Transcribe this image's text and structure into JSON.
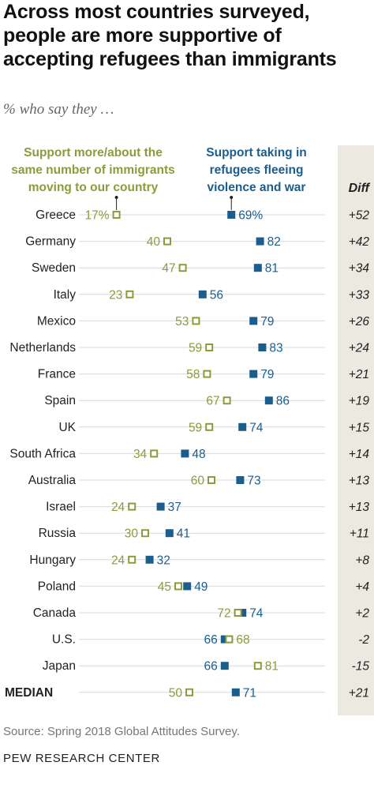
{
  "title": "Across most countries surveyed,\npeople are more supportive of\naccepting refugees than immigrants",
  "subtitle": "% who say they …",
  "source": "Source: Spring 2018 Global Attitudes Survey.",
  "footer": "PEW RESEARCH CENTER",
  "colors": {
    "immigrants": "#8f9a3a",
    "refugees": "#1a5e8e",
    "diff_panel": "#ece9e0",
    "line": "#d9d9d9"
  },
  "chart_data": {
    "type": "dot",
    "diff_header": "Diff",
    "series": [
      {
        "name": "Support more/about the same number of immigrants moving to our country",
        "marker": "hollow-square",
        "color": "#8f9a3a",
        "values": [
          17,
          40,
          47,
          23,
          53,
          59,
          58,
          67,
          59,
          34,
          60,
          24,
          30,
          24,
          45,
          72,
          68,
          81,
          50
        ]
      },
      {
        "name": "Support taking in refugees fleeing violence and war",
        "marker": "filled-square",
        "color": "#1a5e8e",
        "values": [
          69,
          82,
          81,
          56,
          79,
          83,
          79,
          86,
          74,
          48,
          73,
          37,
          41,
          32,
          49,
          74,
          66,
          66,
          71
        ]
      }
    ],
    "legend_left": "Support more/about the same number of immigrants moving to our country",
    "legend_right": "Support taking in refugees fleeing violence and war",
    "categories": [
      "Greece",
      "Germany",
      "Sweden",
      "Italy",
      "Mexico",
      "Netherlands",
      "France",
      "Spain",
      "UK",
      "South Africa",
      "Australia",
      "Israel",
      "Russia",
      "Hungary",
      "Poland",
      "Canada",
      "U.S.",
      "Japan",
      "MEDIAN"
    ],
    "labels_immigrants": [
      "17%",
      "40",
      "47",
      "23",
      "53",
      "59",
      "58",
      "67",
      "59",
      "34",
      "60",
      "24",
      "30",
      "24",
      "45",
      "72",
      "68",
      "81",
      "50"
    ],
    "labels_refugees": [
      "69%",
      "82",
      "81",
      "56",
      "79",
      "83",
      "79",
      "86",
      "74",
      "48",
      "73",
      "37",
      "41",
      "32",
      "49",
      "74",
      "66",
      "66",
      "71"
    ],
    "diff": [
      "+52",
      "+42",
      "+34",
      "+33",
      "+26",
      "+24",
      "+21",
      "+19",
      "+15",
      "+14",
      "+13",
      "+13",
      "+11",
      "+8",
      "+4",
      "+2",
      "-2",
      "-15",
      "+21"
    ],
    "xlim": [
      0,
      100
    ]
  }
}
